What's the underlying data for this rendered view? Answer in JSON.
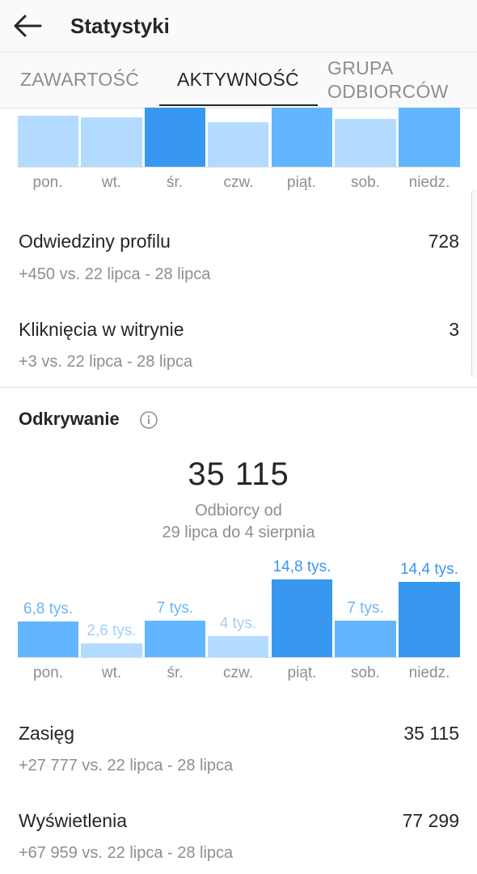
{
  "header": {
    "title": "Statystyki",
    "back_icon": "arrow-left-icon"
  },
  "tabs": [
    {
      "label": "ZAWARTOŚĆ",
      "active": false
    },
    {
      "label": "AKTYWNOŚĆ",
      "active": true
    },
    {
      "label_line1": "GRUPA",
      "label_line2": "ODBIORCÓW",
      "active": false
    }
  ],
  "top_chart": {
    "days": [
      "pon.",
      "wt.",
      "śr.",
      "czw.",
      "piąt.",
      "sob.",
      "niedz."
    ]
  },
  "metrics_top": [
    {
      "label": "Odwiedziny profilu",
      "value": "728",
      "sub": "+450 vs. 22 lipca - 28 lipca"
    },
    {
      "label": "Kliknięcia w witrynie",
      "value": "3",
      "sub": "+3 vs. 22 lipca - 28 lipca"
    }
  ],
  "discovery": {
    "title": "Odkrywanie",
    "info_icon": "info-icon",
    "total": "35 115",
    "caption_line1": "Odbiorcy od",
    "caption_line2": "29 lipca do 4 sierpnia"
  },
  "chart_data": {
    "type": "bar",
    "categories": [
      "pon.",
      "wt.",
      "śr.",
      "czw.",
      "piąt.",
      "sob.",
      "niedz."
    ],
    "values": [
      6.8,
      2.6,
      7,
      4,
      14.8,
      7,
      14.4
    ],
    "data_labels": [
      "6,8 tys.",
      "2,6 tys.",
      "7 tys.",
      "4 tys.",
      "14,8 tys.",
      "7 tys.",
      "14,4 tys."
    ],
    "unit": "tys.",
    "colors": {
      "low": "#b3dbff",
      "mid": "#62b5ff",
      "high": "#3897f0"
    }
  },
  "metrics_bottom": [
    {
      "label": "Zasięg",
      "value": "35 115",
      "sub": "+27 777 vs. 22 lipca - 28 lipca"
    },
    {
      "label": "Wyświetlenia",
      "value": "77 299",
      "sub": "+67 959 vs. 22 lipca - 28 lipca"
    }
  ]
}
